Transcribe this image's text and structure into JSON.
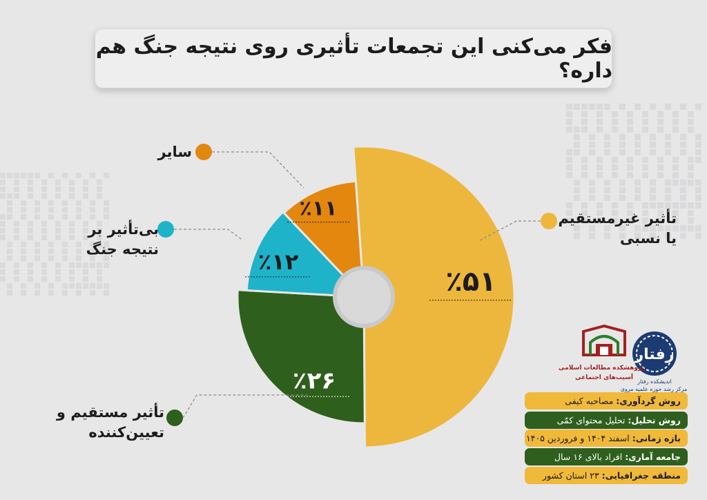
{
  "title": "فکر می‌کنی این تجمعات تأثیری روی نتیجه جنگ هم داره؟",
  "chart_data": {
    "type": "pie",
    "title": "فکر می‌کنی این تجمعات تأثیری روی نتیجه جنگ هم داره؟",
    "slices": [
      {
        "label_lines": [
          "تأثیر غیرمستقیم",
          "یا نسبی"
        ],
        "value": 51,
        "value_text": "٪۵۱",
        "color": "#ecb73c"
      },
      {
        "label_lines": [
          "تأثیر مستقیم و",
          "تعیین‌کننده"
        ],
        "value": 26,
        "value_text": "٪۲۶",
        "color": "#2f5f1c"
      },
      {
        "label_lines": [
          "بی‌تأثیر بر",
          "نتیجه جنگ"
        ],
        "value": 12,
        "value_text": "٪۱۲",
        "color": "#1eb3c9"
      },
      {
        "label_lines": [
          "سایر"
        ],
        "value": 11,
        "value_text": "٪۱۱",
        "color": "#e3870f"
      }
    ]
  },
  "info": [
    {
      "key": "روش گردآوری:",
      "value": "مصاحبه کیفی",
      "color": "yellow"
    },
    {
      "key": "روش تحلیل:",
      "value": "تحلیل محتوای کمّی",
      "color": "green"
    },
    {
      "key": "بازه زمانی:",
      "value": "اسفند ۱۴۰۴ و فروردین ۱۴۰۵",
      "color": "yellow"
    },
    {
      "key": "جامعه آماری:",
      "value": "افراد بالای ۱۶ سال",
      "color": "green"
    },
    {
      "key": "منطقه جغرافیایی:",
      "value": "۲۳ استان کشور",
      "color": "yellow"
    }
  ],
  "logos": {
    "a_name": "رفتار",
    "a_caption_1": "اندیشکده رفتار",
    "a_caption_2": "مرکز رشد حوزه علمیه مروی",
    "b_caption_1": "پژوهشکده مطالعات اسلامی",
    "b_caption_2": "آسیب‌های اجتماعی"
  },
  "icons": {
    "logo_a": "seal-logo-icon",
    "logo_b": "mosque-logo-icon"
  }
}
